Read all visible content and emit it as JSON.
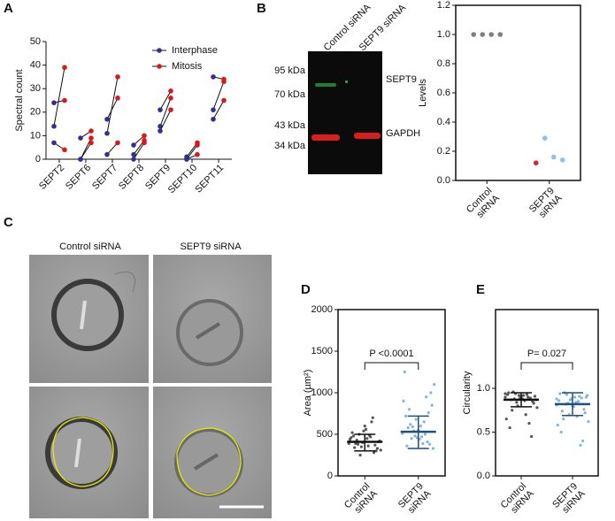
{
  "chart_data": [
    {
      "type": "paired-dot",
      "panel": "A",
      "ylabel": "Spectral count",
      "ylim": [
        0,
        50
      ],
      "yticks": [
        0,
        10,
        20,
        30,
        40,
        50
      ],
      "legend": "top-right",
      "categories": [
        "SEPT2",
        "SEPT6",
        "SEPT7",
        "SEPT8",
        "SEPT9",
        "SEPT10",
        "SEPT11"
      ],
      "series": [
        {
          "name": "Interphase",
          "color": "#2e3192",
          "values": [
            [
              24,
              14,
              7
            ],
            [
              9,
              0,
              0
            ],
            [
              17,
              11,
              2
            ],
            [
              6,
              2,
              0
            ],
            [
              21,
              14,
              12
            ],
            [
              1,
              0,
              0
            ],
            [
              35,
              21,
              17
            ]
          ]
        },
        {
          "name": "Mitosis",
          "color": "#d7191c",
          "values": [
            [
              25,
              39,
              4
            ],
            [
              12,
              9,
              7
            ],
            [
              26,
              35,
              7
            ],
            [
              10,
              8,
              7
            ],
            [
              29,
              26,
              21
            ],
            [
              7,
              6,
              2
            ],
            [
              34,
              33,
              25
            ]
          ]
        }
      ]
    },
    {
      "type": "strip",
      "ylabel": "Levels",
      "ylim": [
        0,
        1.2
      ],
      "yticks": [
        {
          "value": 0,
          "label": "0.0"
        },
        {
          "value": 0.2,
          "label": "0.2"
        },
        {
          "value": 0.4,
          "label": "0.4"
        },
        {
          "value": 0.6,
          "label": "0.6"
        },
        {
          "value": 0.8,
          "label": "0.8"
        },
        {
          "value": 1,
          "label": "1.0"
        },
        {
          "value": 1.2,
          "label": "1.2"
        }
      ],
      "categories": [
        [
          "Control",
          "siRNA"
        ],
        [
          "SEPT9",
          "siRNA"
        ]
      ],
      "series": [
        {
          "colors": [
            "#7f7f7f",
            "#7f7f7f",
            "#7f7f7f",
            "#7f7f7f"
          ],
          "values": [
            1,
            1,
            1,
            1
          ]
        },
        {
          "colors": [
            "#e0202a",
            "#8fc0e6",
            "#8fc0e6",
            "#8fc0e6"
          ],
          "values": [
            0.12,
            0.29,
            0.16,
            0.14
          ]
        }
      ]
    },
    {
      "type": "strip",
      "panel": "D",
      "ylabel": "Area  (µm²)",
      "ylim": [
        0,
        2000
      ],
      "yticks": [
        0,
        500,
        1000,
        1500,
        2000
      ],
      "annotation": "P <0.0001",
      "categories": [
        [
          "Control",
          "siRNA"
        ],
        [
          "SEPT9",
          "siRNA"
        ]
      ],
      "series": [
        {
          "color": "#555555",
          "line_color": "#111111",
          "center": 410,
          "range": [
            300,
            500
          ],
          "values": [
            410,
            380,
            450,
            300,
            520,
            350,
            470,
            420,
            390,
            600,
            280,
            440,
            500,
            360,
            330,
            480,
            400,
            650,
            310,
            430,
            560,
            370,
            460,
            250,
            490,
            410,
            340,
            540,
            700,
            390
          ]
        },
        {
          "color": "#7fb6e0",
          "line_color": "#1f4f7a",
          "center": 530,
          "range": [
            330,
            720
          ],
          "values": [
            520,
            450,
            600,
            380,
            720,
            480,
            650,
            330,
            800,
            550,
            410,
            900,
            590,
            470,
            1000,
            360,
            680,
            500,
            1100,
            620,
            440,
            760,
            1250,
            540,
            390,
            850,
            580,
            460,
            950,
            510
          ]
        }
      ]
    },
    {
      "type": "strip",
      "panel": "E",
      "ylabel": "Circularity",
      "ylim": [
        0,
        1.9
      ],
      "yticks": [
        {
          "value": 0,
          "label": "0.0"
        },
        {
          "value": 0.5,
          "label": "0.5"
        },
        {
          "value": 1,
          "label": "1.0"
        }
      ],
      "annotation": "P= 0.027",
      "categories": [
        [
          "Control",
          "siRNA"
        ],
        [
          "SEPT9",
          "siRNA"
        ]
      ],
      "series": [
        {
          "color": "#555555",
          "line_color": "#111111",
          "center": 0.87,
          "range": [
            0.79,
            0.95
          ],
          "values": [
            0.9,
            0.88,
            0.92,
            0.85,
            0.95,
            0.8,
            0.93,
            0.87,
            0.75,
            0.91,
            0.89,
            0.65,
            0.94,
            0.86,
            0.83,
            0.55,
            0.92,
            0.9,
            0.78,
            0.96,
            0.88,
            0.45,
            0.93,
            0.84,
            0.7,
            0.91,
            0.87,
            0.89,
            0.6,
            0.94
          ]
        },
        {
          "color": "#7fb6e0",
          "line_color": "#1f4f7a",
          "center": 0.82,
          "range": [
            0.69,
            0.95
          ],
          "values": [
            0.88,
            0.82,
            0.9,
            0.76,
            0.94,
            0.7,
            0.85,
            0.92,
            0.65,
            0.8,
            0.89,
            0.58,
            0.93,
            0.84,
            0.72,
            0.5,
            0.87,
            0.91,
            0.62,
            0.95,
            0.79,
            0.4,
            0.86,
            0.83,
            0.68,
            0.9,
            0.74,
            0.88,
            0.35,
            0.81
          ]
        }
      ]
    }
  ],
  "blot": {
    "panel": "B",
    "lanes": [
      "Control siRNA",
      "SEPT9 siRNA"
    ],
    "markers": [
      "95 kDa",
      "70 kDa",
      "43 kDa",
      "34 kDa"
    ],
    "bands": [
      "SEPT9",
      "GAPDH"
    ]
  },
  "micrographs": {
    "panel": "C",
    "columns": [
      "Control siRNA",
      "SEPT9 siRNA"
    ]
  }
}
